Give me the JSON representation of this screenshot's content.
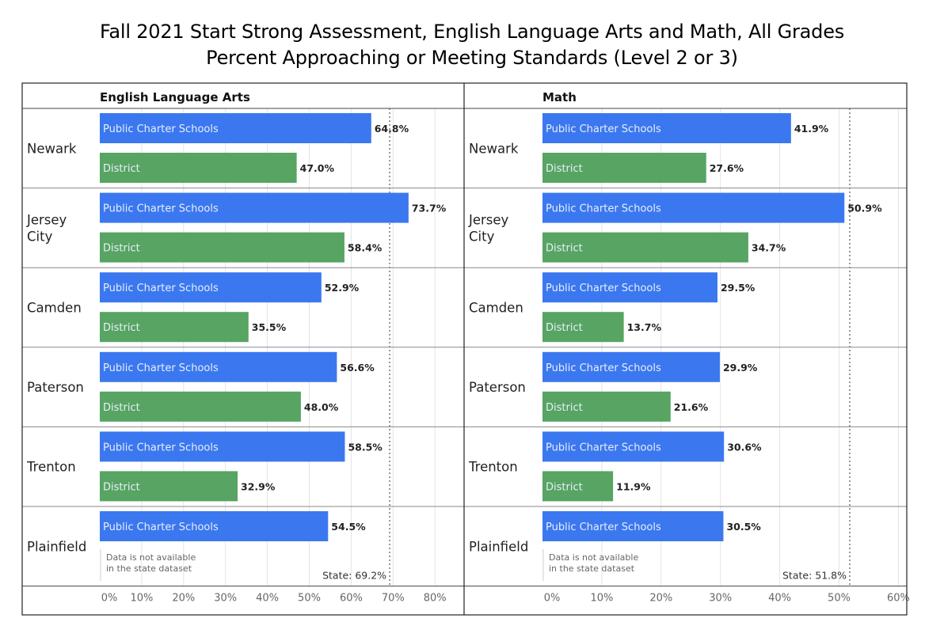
{
  "chart_data": [
    {
      "type": "bar",
      "orientation": "horizontal",
      "title": "English Language Arts",
      "categories": [
        "Newark",
        "Jersey City",
        "Camden",
        "Paterson",
        "Trenton",
        "Plainfield"
      ],
      "series": [
        {
          "name": "Public Charter Schools",
          "values": [
            64.8,
            73.7,
            52.9,
            56.6,
            58.5,
            54.5
          ],
          "color": "#3b78f0"
        },
        {
          "name": "District",
          "values": [
            47.0,
            58.4,
            35.5,
            48.0,
            32.9,
            null
          ],
          "color": "#57a463"
        }
      ],
      "value_labels": [
        [
          "64.8%",
          "73.7%",
          "52.9%",
          "56.6%",
          "58.5%",
          "54.5%"
        ],
        [
          "47.0%",
          "58.4%",
          "35.5%",
          "48.0%",
          "32.9%",
          null
        ]
      ],
      "missing_note": [
        "Data is not available",
        "in the state dataset"
      ],
      "reference_line": {
        "value": 69.2,
        "label": "State: 69.2%",
        "style": "dotted"
      },
      "xlim": [
        0,
        87
      ],
      "xticks": [
        0,
        10,
        20,
        30,
        40,
        50,
        60,
        70,
        80
      ],
      "xtick_labels": [
        "0%",
        "10%",
        "20%",
        "30%",
        "40%",
        "50%",
        "60%",
        "70%",
        "80%"
      ],
      "grid": true
    },
    {
      "type": "bar",
      "orientation": "horizontal",
      "title": "Math",
      "categories": [
        "Newark",
        "Jersey City",
        "Camden",
        "Paterson",
        "Trenton",
        "Plainfield"
      ],
      "series": [
        {
          "name": "Public Charter Schools",
          "values": [
            41.9,
            50.9,
            29.5,
            29.9,
            30.6,
            30.5
          ],
          "color": "#3b78f0"
        },
        {
          "name": "District",
          "values": [
            27.6,
            34.7,
            13.7,
            21.6,
            11.9,
            null
          ],
          "color": "#57a463"
        }
      ],
      "value_labels": [
        [
          "41.9%",
          "50.9%",
          "29.5%",
          "29.9%",
          "30.6%",
          "30.5%"
        ],
        [
          "27.6%",
          "34.7%",
          "13.7%",
          "21.6%",
          "11.9%",
          null
        ]
      ],
      "missing_note": [
        "Data is not available",
        "in the state dataset"
      ],
      "reference_line": {
        "value": 51.8,
        "label": "State: 51.8%",
        "style": "dotted"
      },
      "xlim": [
        0,
        61.5
      ],
      "xticks": [
        0,
        10,
        20,
        30,
        40,
        50,
        60
      ],
      "xtick_labels": [
        "0%",
        "10%",
        "20%",
        "30%",
        "40%",
        "50%",
        "60%"
      ],
      "grid": true
    }
  ],
  "title_line1": "Fall 2021 Start Strong Assessment, English Language Arts and Math, All Grades",
  "title_line2": "Percent Approaching or Meeting Standards (Level 2 or 3)",
  "category_lines": [
    [
      "Newark"
    ],
    [
      "Jersey",
      "City"
    ],
    [
      "Camden"
    ],
    [
      "Paterson"
    ],
    [
      "Trenton"
    ],
    [
      "Plainfield"
    ]
  ]
}
